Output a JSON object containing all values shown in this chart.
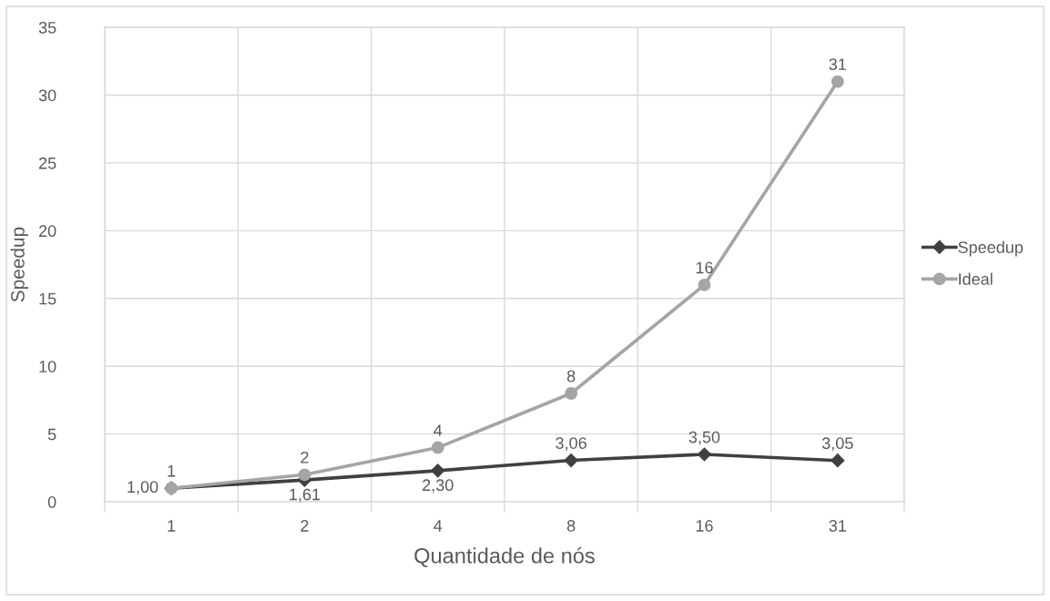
{
  "chart_data": {
    "type": "line",
    "xlabel": "Quantidade de nós",
    "ylabel": "Speedup",
    "categories": [
      "1",
      "2",
      "4",
      "8",
      "16",
      "31"
    ],
    "series": [
      {
        "name": "Speedup",
        "color": "#404040",
        "marker": "diamond",
        "values": [
          1.0,
          1.61,
          2.3,
          3.06,
          3.5,
          3.05
        ],
        "value_labels": [
          "1,00",
          "1,61",
          "2,30",
          "3,06",
          "3,50",
          "3,05"
        ]
      },
      {
        "name": "Ideal",
        "color": "#a5a5a5",
        "marker": "circle",
        "values": [
          1,
          2,
          4,
          8,
          16,
          31
        ],
        "value_labels": [
          "1",
          "2",
          "4",
          "8",
          "16",
          "31"
        ]
      }
    ],
    "ylim": [
      0,
      35
    ],
    "yticks": [
      0,
      5,
      10,
      15,
      20,
      25,
      30,
      35
    ],
    "grid": true,
    "legend": "right",
    "line_style": "solid"
  }
}
